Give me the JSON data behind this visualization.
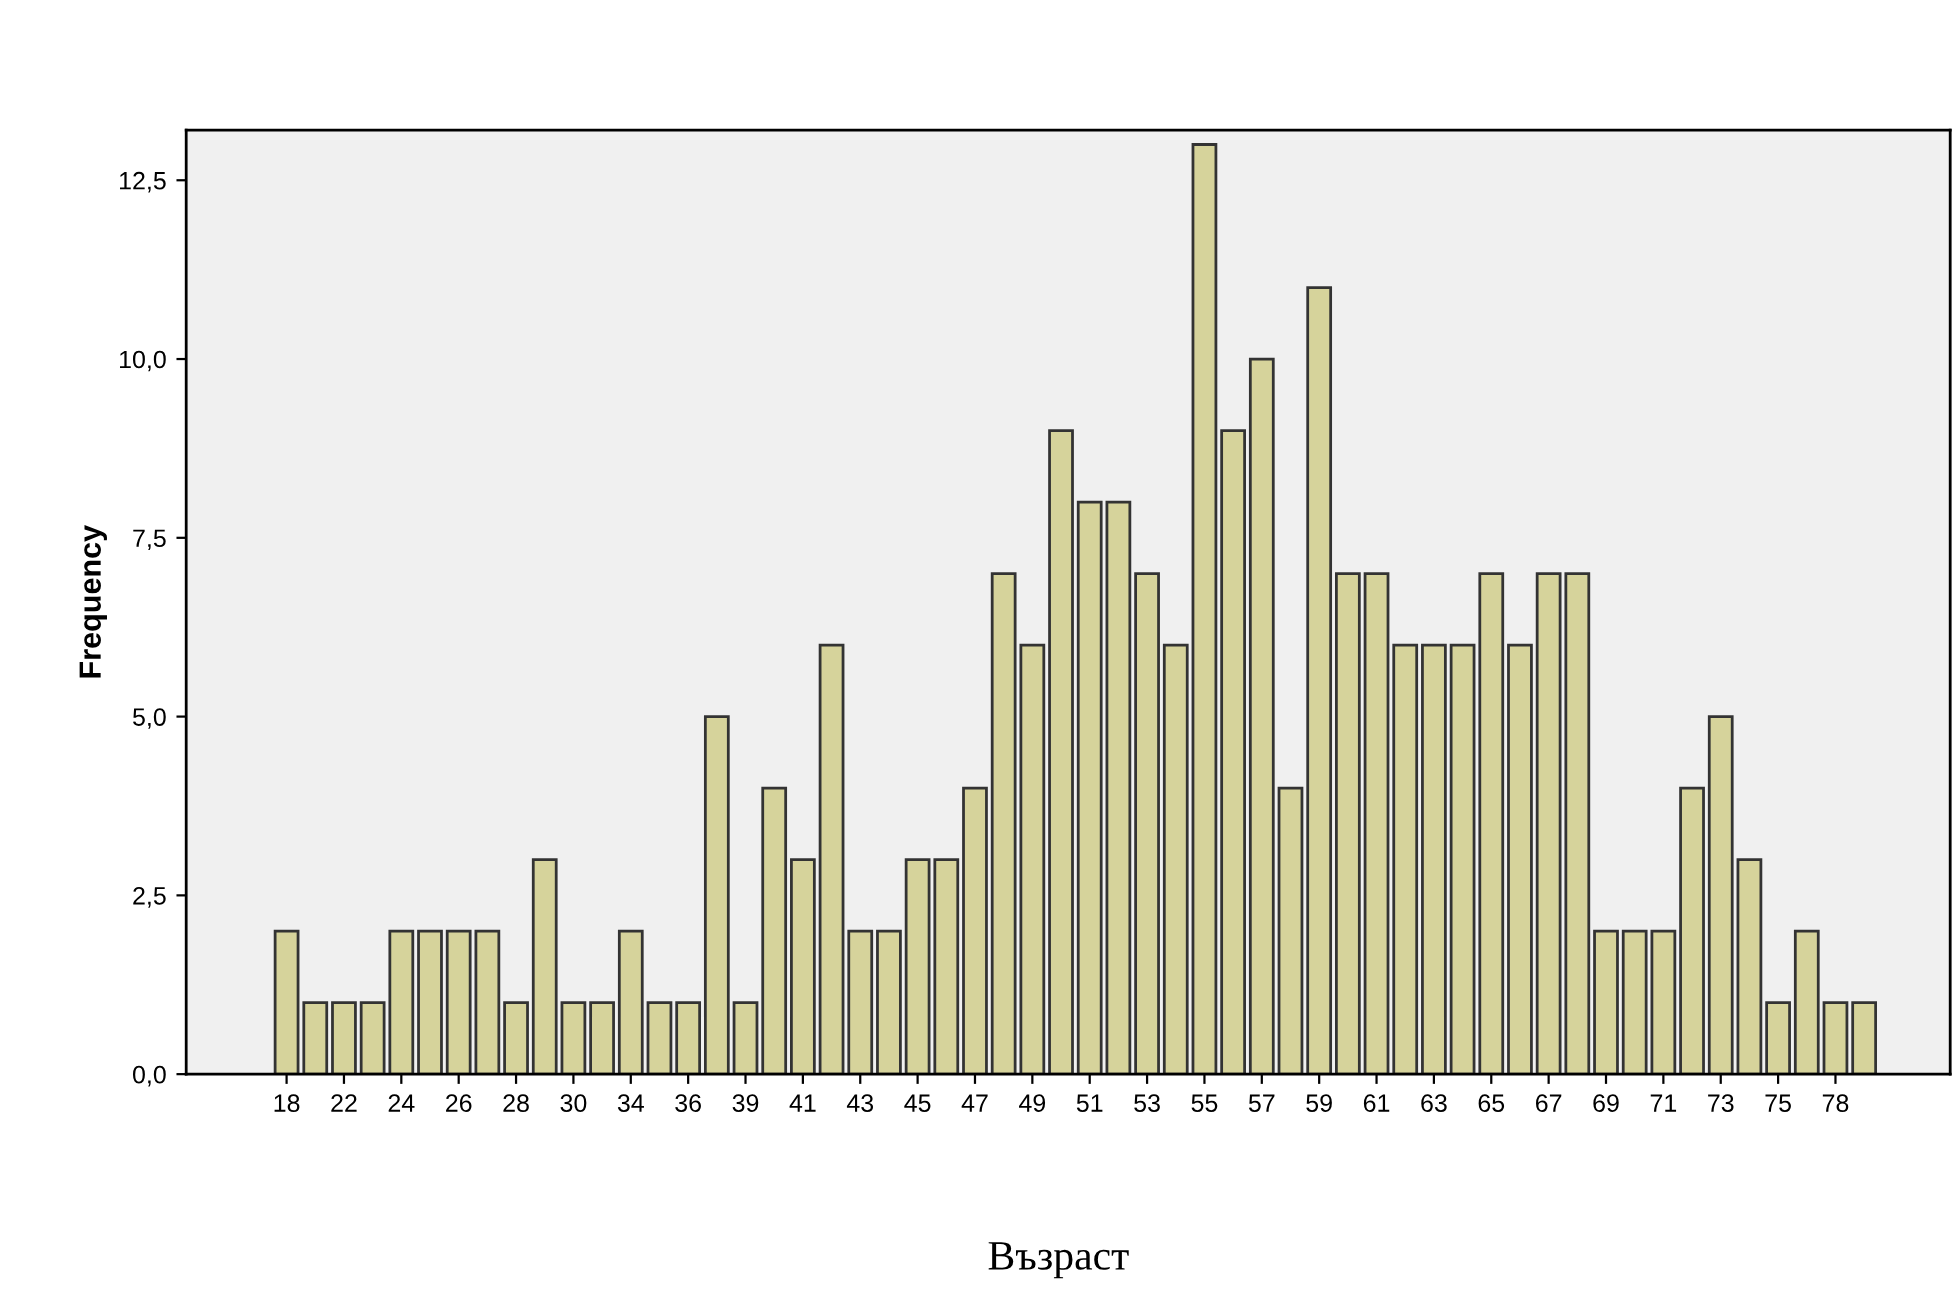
{
  "chart_data": {
    "type": "bar",
    "xlabel": "Възраст",
    "ylabel": "Frequency",
    "categories": [
      "18",
      null,
      "22",
      null,
      "24",
      null,
      "26",
      null,
      "28",
      null,
      "30",
      null,
      "34",
      null,
      "36",
      null,
      "39",
      null,
      "41",
      null,
      "43",
      null,
      "45",
      null,
      "47",
      null,
      "49",
      null,
      "51",
      null,
      "53",
      null,
      "55",
      null,
      "57",
      null,
      "59",
      null,
      "61",
      null,
      "63",
      null,
      "65",
      null,
      "67",
      null,
      "69",
      null,
      "71",
      null,
      "73",
      null,
      "75",
      null,
      "78",
      null
    ],
    "values": [
      2,
      1,
      1,
      1,
      2,
      2,
      2,
      2,
      1,
      3,
      1,
      1,
      2,
      1,
      1,
      5,
      1,
      4,
      3,
      6,
      2,
      2,
      3,
      3,
      4,
      7,
      6,
      9,
      8,
      8,
      7,
      6,
      13,
      9,
      10,
      4,
      11,
      7,
      7,
      6,
      6,
      6,
      7,
      6,
      7,
      7,
      2,
      2,
      2,
      4,
      5,
      3,
      1,
      2,
      1,
      1
    ],
    "color": "#d6d39b",
    "ylim": [
      0,
      13.2
    ],
    "yticks": [
      {
        "value": 0,
        "label": "0,0"
      },
      {
        "value": 2.5,
        "label": "2,5"
      },
      {
        "value": 5,
        "label": "5,0"
      },
      {
        "value": 7.5,
        "label": "7,5"
      },
      {
        "value": 10,
        "label": "10,0"
      },
      {
        "value": 12.5,
        "label": "12,5"
      }
    ],
    "grid": false,
    "legend": false
  }
}
